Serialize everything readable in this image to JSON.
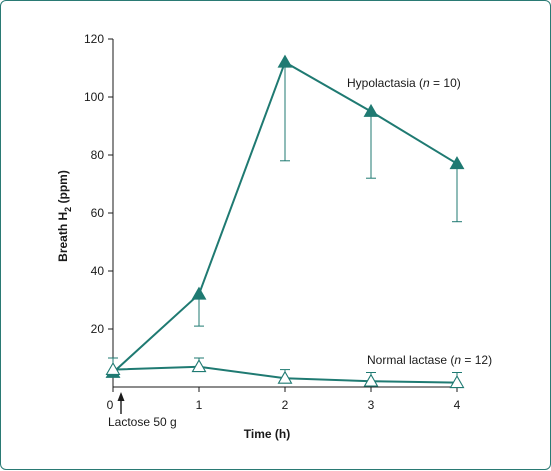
{
  "chart_data": {
    "type": "line",
    "xlabel": "Time (h)",
    "ylabel_main": "Breath H",
    "ylabel_sub": "2",
    "ylabel_tail": " (ppm)",
    "xlim": [
      0,
      4
    ],
    "ylim": [
      0,
      120
    ],
    "x_ticks": [
      0,
      1,
      2,
      3,
      4
    ],
    "y_ticks": [
      20,
      40,
      60,
      80,
      100,
      120
    ],
    "x_tick_labels": [
      "0",
      "1",
      "2",
      "3",
      "4"
    ],
    "y_tick_labels": [
      "20",
      "40",
      "60",
      "80",
      "100",
      "120"
    ],
    "annotation": "Lactose 50 g",
    "grid": false,
    "colors": {
      "series": "#1f7a72",
      "axis": "#1a1a1a",
      "frame": "#2a7a74"
    },
    "series": [
      {
        "label_prefix": "Hypolactasia (",
        "label_italic": "n",
        "label_suffix": " = 10)",
        "marker": "filled-triangle",
        "x": [
          0,
          1,
          2,
          3,
          4
        ],
        "values": [
          5,
          32,
          112,
          95,
          77
        ],
        "error_lower": [
          null,
          21,
          78,
          72,
          57
        ]
      },
      {
        "label_prefix": "Normal lactase (",
        "label_italic": "n",
        "label_suffix": " = 12)",
        "marker": "open-triangle",
        "x": [
          0,
          1,
          2,
          3,
          4
        ],
        "values": [
          6,
          7,
          3,
          2,
          1.5
        ],
        "error_upper": [
          10,
          10,
          6,
          5,
          5
        ]
      }
    ]
  }
}
